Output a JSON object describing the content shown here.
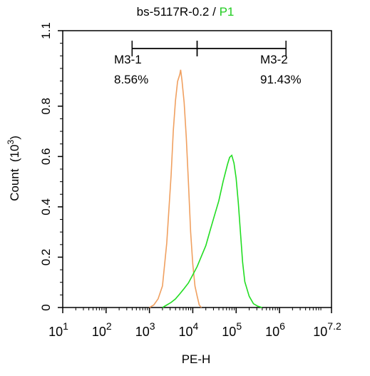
{
  "chart_data": {
    "type": "histogram",
    "title": {
      "sample": "bs-5117R-0.2",
      "separator": " / ",
      "gate": "P1",
      "gate_color": "#22cc22"
    },
    "xlabel": "PE-H",
    "ylabel": "Count",
    "ylabel_unit_prefix": "(10",
    "ylabel_unit_exp": "3",
    "ylabel_unit_suffix": ")",
    "x_scale": "log10",
    "xlim_log": [
      1,
      7.2
    ],
    "ylim": [
      0,
      1.1
    ],
    "x_ticks": [
      {
        "base": "10",
        "exp": "1",
        "pos": 1
      },
      {
        "base": "10",
        "exp": "2",
        "pos": 2
      },
      {
        "base": "10",
        "exp": "3",
        "pos": 3
      },
      {
        "base": "10",
        "exp": "4",
        "pos": 4
      },
      {
        "base": "10",
        "exp": "5",
        "pos": 5
      },
      {
        "base": "10",
        "exp": "6",
        "pos": 6
      },
      {
        "base": "10",
        "exp": "7.2",
        "pos": 7.2
      }
    ],
    "y_ticks": [
      {
        "label": "0",
        "value": 0
      },
      {
        "label": "0.2",
        "value": 0.2
      },
      {
        "label": "0.4",
        "value": 0.4
      },
      {
        "label": "0.6",
        "value": 0.6
      },
      {
        "label": "0.8",
        "value": 0.8
      },
      {
        "label": "1.1",
        "value": 1.1
      }
    ],
    "markers": [
      {
        "name": "M3-1",
        "percent": "8.56%",
        "range_log": [
          2.6,
          4.1
        ]
      },
      {
        "name": "M3-2",
        "percent": "91.43%",
        "range_log": [
          4.1,
          6.15
        ]
      }
    ],
    "series": [
      {
        "color": "#f0a060",
        "points": [
          [
            3.0,
            0
          ],
          [
            3.1,
            0.01
          ],
          [
            3.2,
            0.03
          ],
          [
            3.3,
            0.08
          ],
          [
            3.4,
            0.25
          ],
          [
            3.5,
            0.52
          ],
          [
            3.55,
            0.7
          ],
          [
            3.6,
            0.82
          ],
          [
            3.65,
            0.9
          ],
          [
            3.7,
            0.93
          ],
          [
            3.72,
            0.95
          ],
          [
            3.75,
            0.91
          ],
          [
            3.8,
            0.82
          ],
          [
            3.85,
            0.68
          ],
          [
            3.9,
            0.5
          ],
          [
            3.95,
            0.3
          ],
          [
            4.0,
            0.17
          ],
          [
            4.05,
            0.08
          ],
          [
            4.1,
            0.04
          ],
          [
            4.15,
            0.01
          ],
          [
            4.2,
            0
          ]
        ]
      },
      {
        "color": "#22dd22",
        "points": [
          [
            3.3,
            0
          ],
          [
            3.4,
            0.01
          ],
          [
            3.5,
            0.02
          ],
          [
            3.6,
            0.04
          ],
          [
            3.7,
            0.06
          ],
          [
            3.8,
            0.08
          ],
          [
            3.9,
            0.1
          ],
          [
            4.0,
            0.13
          ],
          [
            4.1,
            0.16
          ],
          [
            4.2,
            0.2
          ],
          [
            4.3,
            0.24
          ],
          [
            4.4,
            0.3
          ],
          [
            4.5,
            0.36
          ],
          [
            4.6,
            0.42
          ],
          [
            4.7,
            0.5
          ],
          [
            4.8,
            0.57
          ],
          [
            4.85,
            0.6
          ],
          [
            4.9,
            0.61
          ],
          [
            4.95,
            0.58
          ],
          [
            5.0,
            0.52
          ],
          [
            5.05,
            0.42
          ],
          [
            5.1,
            0.3
          ],
          [
            5.15,
            0.18
          ],
          [
            5.2,
            0.1
          ],
          [
            5.3,
            0.04
          ],
          [
            5.4,
            0.015
          ],
          [
            5.5,
            0.005
          ],
          [
            5.6,
            0
          ]
        ]
      }
    ]
  }
}
